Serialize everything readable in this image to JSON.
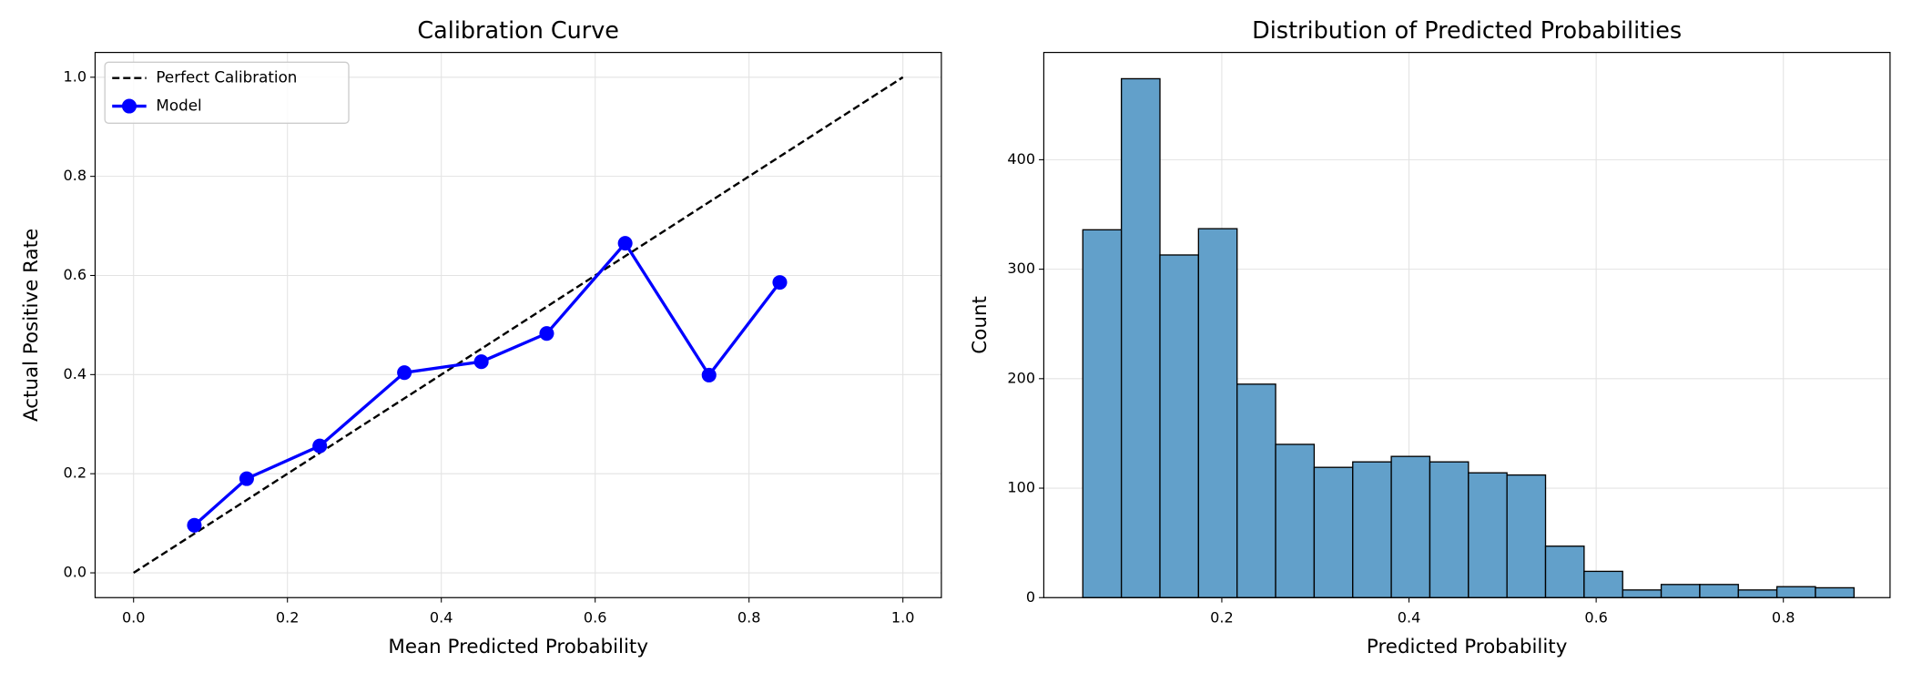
{
  "chart_data": [
    {
      "type": "line",
      "title": "Calibration Curve",
      "xlabel": "Mean Predicted Probability",
      "ylabel": "Actual Positive Rate",
      "xlim": [
        -0.05,
        1.05
      ],
      "ylim": [
        -0.05,
        1.05
      ],
      "xticks": [
        {
          "value": 0,
          "label": "0.0"
        },
        0.2,
        0.4,
        0.6,
        0.8,
        {
          "value": 1,
          "label": "1.0"
        }
      ],
      "yticks": [
        {
          "value": 0,
          "label": "0.0"
        },
        0.2,
        0.4,
        0.6,
        0.8,
        {
          "value": 1,
          "label": "1.0"
        }
      ],
      "grid": true,
      "legend": "upper left",
      "series": [
        {
          "name": "Perfect Calibration",
          "color": "#000000",
          "linestyle": "dashed",
          "x": [
            0,
            1
          ],
          "values": [
            0,
            1
          ]
        },
        {
          "name": "Model",
          "color": "#0000ff",
          "linestyle": "solid",
          "marker": "circle",
          "x": [
            0.079,
            0.147,
            0.242,
            0.352,
            0.452,
            0.537,
            0.639,
            0.748,
            0.84
          ],
          "values": [
            0.096,
            0.19,
            0.256,
            0.404,
            0.426,
            0.483,
            0.665,
            0.399,
            0.586
          ]
        }
      ]
    },
    {
      "type": "histogram",
      "title": "Distribution of Predicted Probabilities",
      "xlabel": "Predicted Probability",
      "ylabel": "Count",
      "xlim": [
        0.0098,
        0.914
      ],
      "ylim": [
        0,
        498
      ],
      "xticks": [
        0.2,
        0.4,
        0.6,
        0.8
      ],
      "yticks": [
        0,
        100,
        200,
        300,
        400
      ],
      "grid": true,
      "color": "#62a0ca",
      "edgecolor": "#000000",
      "bins": [
        0.0515,
        0.0927,
        0.1339,
        0.1751,
        0.2163,
        0.2575,
        0.2987,
        0.3399,
        0.3811,
        0.4223,
        0.4635,
        0.5047,
        0.5459,
        0.5871,
        0.6283,
        0.6695,
        0.7107,
        0.7519,
        0.7931,
        0.8343,
        0.8755
      ],
      "values": [
        336,
        474,
        313,
        337,
        195,
        140,
        119,
        124,
        129,
        124,
        114,
        112,
        47,
        24,
        7,
        12,
        12,
        7,
        10,
        9
      ]
    }
  ]
}
